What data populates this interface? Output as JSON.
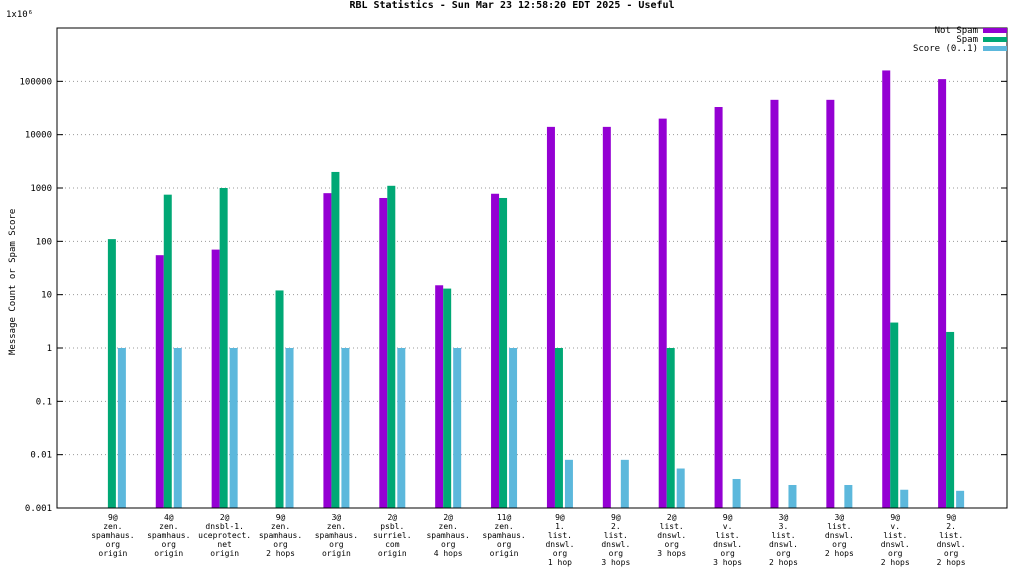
{
  "chart_data": {
    "type": "bar",
    "title": "RBL Statistics - Sun Mar 23 12:58:20 EDT 2025 - Useful",
    "ylabel": "Message Count or Spam Score",
    "y_scale": "log",
    "ylim": [
      0.001,
      1000000
    ],
    "y_top_label": "1x10⁶",
    "y_ticks": [
      "100000",
      "10000",
      "1000",
      "100",
      "10",
      "1",
      "0.1",
      "0.01",
      "0.001"
    ],
    "grid": true,
    "legend_position": "top-right",
    "categories": [
      [
        "9@",
        "zen.",
        "spamhaus.",
        "org",
        "origin"
      ],
      [
        "4@",
        "zen.",
        "spamhaus.",
        "org",
        "origin"
      ],
      [
        "2@",
        "dnsbl-1.",
        "uceprotect.",
        "net",
        "origin"
      ],
      [
        "9@",
        "zen.",
        "spamhaus.",
        "org",
        "2 hops"
      ],
      [
        "3@",
        "zen.",
        "spamhaus.",
        "org",
        "origin"
      ],
      [
        "2@",
        "psbl.",
        "surriel.",
        "com",
        "origin"
      ],
      [
        "2@",
        "zen.",
        "spamhaus.",
        "org",
        "4 hops"
      ],
      [
        "11@",
        "zen.",
        "spamhaus.",
        "org",
        "origin"
      ],
      [
        "9@",
        "1.",
        "list.",
        "dnswl.",
        "org",
        "1 hop"
      ],
      [
        "9@",
        "2.",
        "list.",
        "dnswl.",
        "org",
        "3 hops"
      ],
      [
        "2@",
        "list.",
        "dnswl.",
        "org",
        "3 hops"
      ],
      [
        "9@",
        "v.",
        "list.",
        "dnswl.",
        "org",
        "3 hops"
      ],
      [
        "3@",
        "3.",
        "list.",
        "dnswl.",
        "org",
        "2 hops"
      ],
      [
        "3@",
        "list.",
        "dnswl.",
        "org",
        "2 hops"
      ],
      [
        "9@",
        "v.",
        "list.",
        "dnswl.",
        "org",
        "2 hops"
      ],
      [
        "9@",
        "2.",
        "list.",
        "dnswl.",
        "org",
        "2 hops"
      ]
    ],
    "series": [
      {
        "name": "Not Spam",
        "color": "#9400d3",
        "values": [
          null,
          55,
          70,
          null,
          800,
          650,
          15,
          780,
          14000,
          14000,
          20000,
          33000,
          45000,
          45000,
          160000,
          110000
        ]
      },
      {
        "name": "Spam",
        "color": "#00a875",
        "values": [
          110,
          750,
          1000,
          12,
          2000,
          1100,
          13,
          650,
          1,
          null,
          1,
          null,
          null,
          null,
          3,
          2
        ]
      },
      {
        "name": "Score (0..1)",
        "color": "#5cb8dc",
        "values": [
          1,
          1,
          1,
          1,
          1,
          1,
          1,
          1,
          0.008,
          0.008,
          0.0055,
          0.0035,
          0.0027,
          0.0027,
          0.0022,
          0.0021
        ]
      }
    ]
  }
}
